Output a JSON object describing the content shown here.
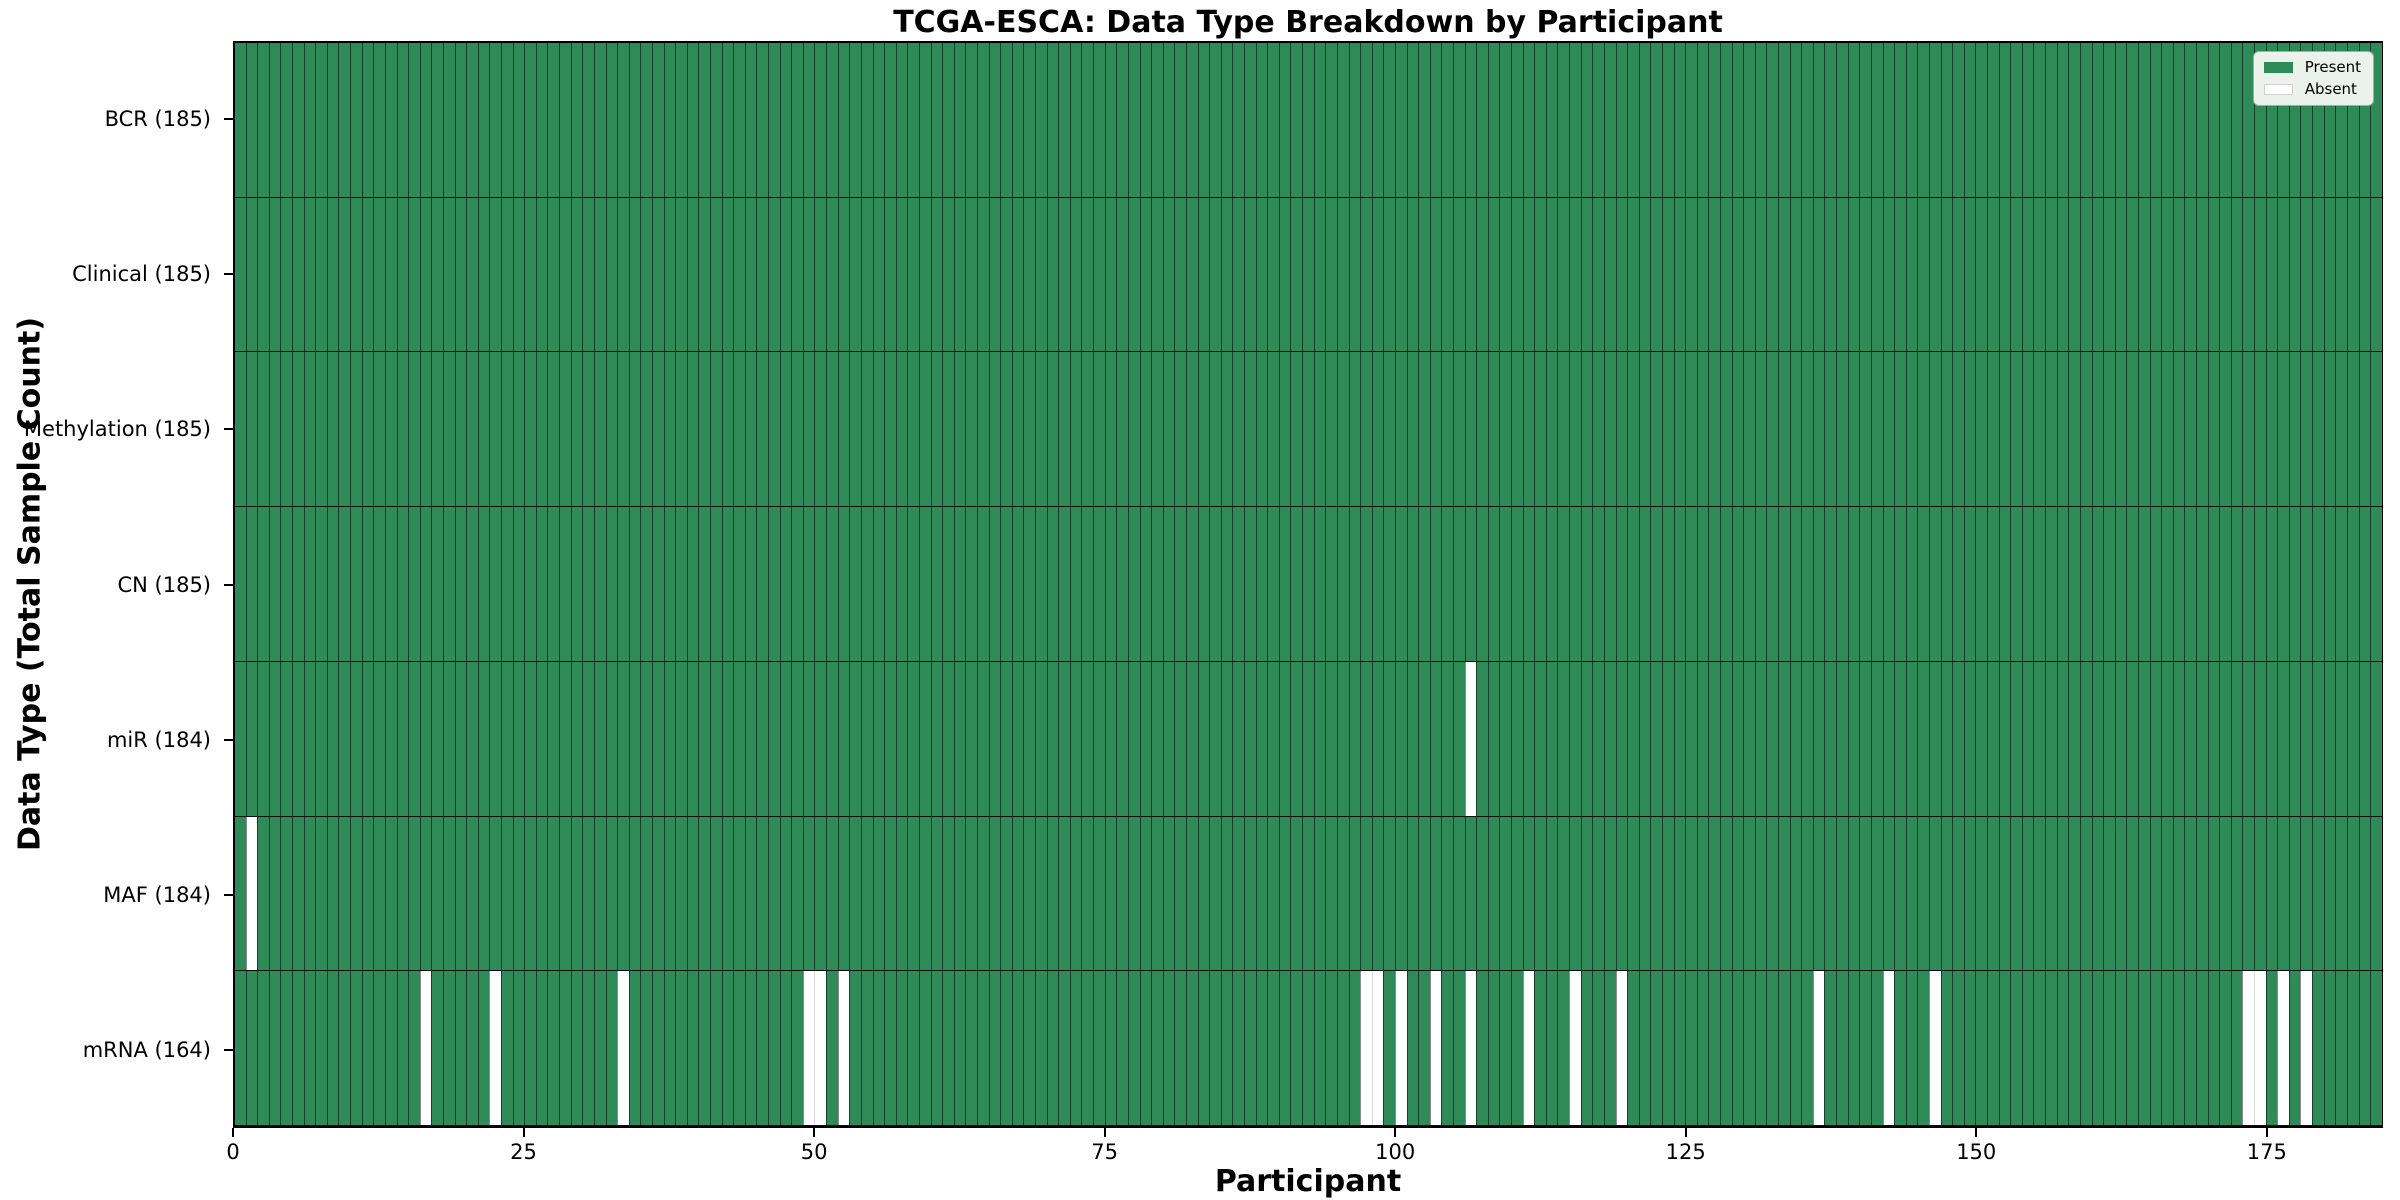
{
  "chart_data": {
    "type": "heatmap",
    "title": "TCGA-ESCA: Data Type Breakdown by Participant",
    "xlabel": "Participant",
    "ylabel": "Data Type (Total Sample Count)",
    "n_participants": 185,
    "xlim": [
      0,
      185
    ],
    "x_ticks": [
      0,
      25,
      50,
      75,
      100,
      125,
      150,
      175
    ],
    "grid": "per-participant vertical cell edges and horizontal row separators",
    "legend_position": "upper right",
    "colors": {
      "present": "#2e8b57",
      "absent": "#ffffff",
      "cell_edge": "rgba(0,0,0,0.55)",
      "row_separator": "#0d0d0d",
      "plot_border": "#000000"
    },
    "legend": [
      {
        "label": "Present",
        "color": "#2e8b57"
      },
      {
        "label": "Absent",
        "color": "#ffffff"
      }
    ],
    "rows": [
      {
        "name": "BCR",
        "label": "BCR (185)",
        "present_count": 185,
        "absent_participants": []
      },
      {
        "name": "Clinical",
        "label": "Clinical (185)",
        "present_count": 185,
        "absent_participants": []
      },
      {
        "name": "Methylation",
        "label": "Methylation (185)",
        "present_count": 185,
        "absent_participants": []
      },
      {
        "name": "CN",
        "label": "CN (185)",
        "present_count": 185,
        "absent_participants": []
      },
      {
        "name": "miR",
        "label": "miR (184)",
        "present_count": 184,
        "absent_participants": [
          107
        ]
      },
      {
        "name": "MAF",
        "label": "MAF (184)",
        "present_count": 184,
        "absent_participants": [
          2
        ]
      },
      {
        "name": "mRNA",
        "label": "mRNA (164)",
        "present_count": 164,
        "absent_participants": [
          17,
          23,
          34,
          50,
          51,
          53,
          98,
          99,
          101,
          104,
          107,
          112,
          116,
          120,
          137,
          143,
          147,
          174,
          175,
          177,
          179
        ]
      }
    ]
  }
}
